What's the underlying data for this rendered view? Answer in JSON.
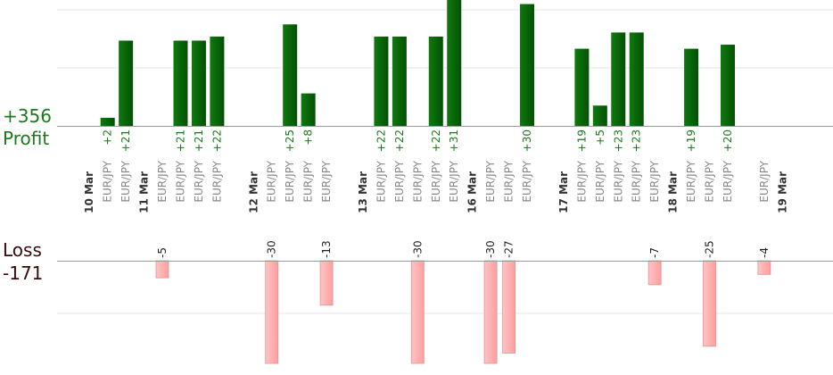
{
  "summary": {
    "profit_total": "+356",
    "profit_label": "Profit",
    "loss_label": "Loss",
    "loss_total": "-171"
  },
  "colors": {
    "profit_bar": "#0a6b0a",
    "profit_text": "#1a7a1a",
    "loss_bar": "#ffb8b8",
    "loss_text": "#222222",
    "grid": "#e6e6e6",
    "baseline": "#999999",
    "date_text": "#333333",
    "pair_text": "#888888"
  },
  "chart_data": {
    "type": "bar",
    "profit_scale_max": 31,
    "loss_scale_max": 30,
    "dates": [
      {
        "label": "10 Mar",
        "slot": 0
      },
      {
        "label": "11 Mar",
        "slot": 3
      },
      {
        "label": "12 Mar",
        "slot": 9
      },
      {
        "label": "13 Mar",
        "slot": 15
      },
      {
        "label": "16 Mar",
        "slot": 21
      },
      {
        "label": "17 Mar",
        "slot": 26
      },
      {
        "label": "18 Mar",
        "slot": 32
      },
      {
        "label": "19 Mar",
        "slot": 38
      }
    ],
    "trades": [
      {
        "slot": 1,
        "pair": "EUR/JPY",
        "value": 2,
        "label": "+2"
      },
      {
        "slot": 2,
        "pair": "EUR/JPY",
        "value": 21,
        "label": "+21"
      },
      {
        "slot": 4,
        "pair": "EUR/JPY",
        "value": -5,
        "label": "-5"
      },
      {
        "slot": 5,
        "pair": "EUR/JPY",
        "value": 21,
        "label": "+21"
      },
      {
        "slot": 6,
        "pair": "EUR/JPY",
        "value": 21,
        "label": "+21"
      },
      {
        "slot": 7,
        "pair": "EUR/JPY",
        "value": 22,
        "label": "+22"
      },
      {
        "slot": 10,
        "pair": "EUR/JPY",
        "value": -30,
        "label": "-30"
      },
      {
        "slot": 11,
        "pair": "EUR/JPY",
        "value": 25,
        "label": "+25"
      },
      {
        "slot": 12,
        "pair": "EUR/JPY",
        "value": 8,
        "label": "+8"
      },
      {
        "slot": 13,
        "pair": "EUR/JPY",
        "value": -13,
        "label": "-13"
      },
      {
        "slot": 16,
        "pair": "EUR/JPY",
        "value": 22,
        "label": "+22"
      },
      {
        "slot": 17,
        "pair": "EUR/JPY",
        "value": 22,
        "label": "+22"
      },
      {
        "slot": 18,
        "pair": "EUR/JPY",
        "value": -30,
        "label": "-30"
      },
      {
        "slot": 19,
        "pair": "EUR/JPY",
        "value": 22,
        "label": "+22"
      },
      {
        "slot": 20,
        "pair": "EUR/JPY",
        "value": 31,
        "label": "+31"
      },
      {
        "slot": 22,
        "pair": "EUR/JPY",
        "value": -30,
        "label": "-30"
      },
      {
        "slot": 23,
        "pair": "EUR/JPY",
        "value": -27,
        "label": "-27"
      },
      {
        "slot": 24,
        "pair": "EUR/JPY",
        "value": 30,
        "label": "+30"
      },
      {
        "slot": 27,
        "pair": "EUR/JPY",
        "value": 19,
        "label": "+19"
      },
      {
        "slot": 28,
        "pair": "EUR/JPY",
        "value": 5,
        "label": "+5"
      },
      {
        "slot": 29,
        "pair": "EUR/JPY",
        "value": 23,
        "label": "+23"
      },
      {
        "slot": 30,
        "pair": "EUR/JPY",
        "value": 23,
        "label": "+23"
      },
      {
        "slot": 31,
        "pair": "EUR/JPY",
        "value": -7,
        "label": "-7"
      },
      {
        "slot": 33,
        "pair": "EUR/JPY",
        "value": 19,
        "label": "+19"
      },
      {
        "slot": 34,
        "pair": "EUR/JPY",
        "value": -25,
        "label": "-25"
      },
      {
        "slot": 35,
        "pair": "EUR/JPY",
        "value": 20,
        "label": "+20"
      },
      {
        "slot": 37,
        "pair": "EUR/JPY",
        "value": -4,
        "label": "-4"
      }
    ]
  }
}
